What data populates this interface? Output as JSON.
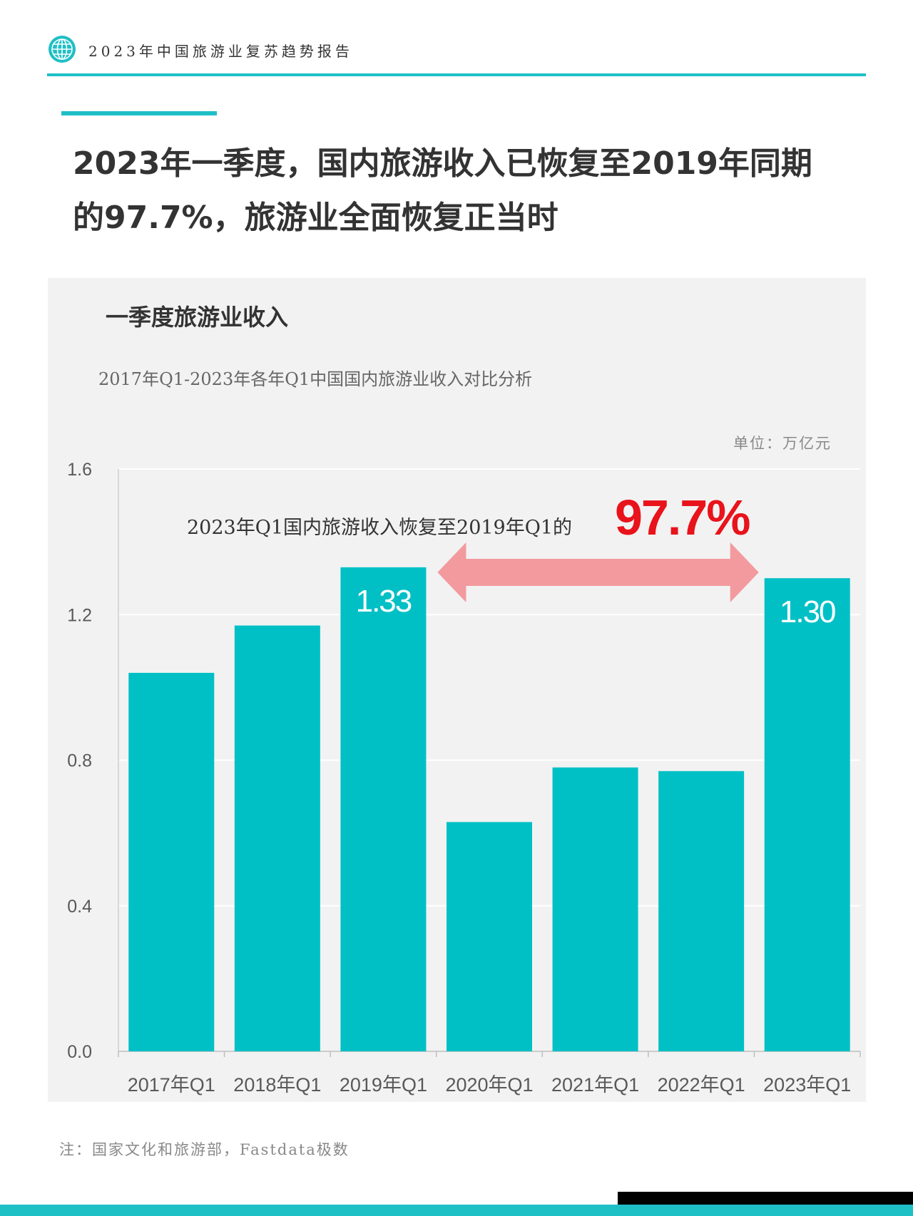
{
  "header": {
    "title": "2023年中国旅游业复苏趋势报告"
  },
  "headline": {
    "line1": "2023年一季度，国内旅游收入已恢复至2019年同期",
    "line2": "的97.7%，旅游业全面恢复正当时"
  },
  "chart_title": "一季度旅游业收入",
  "footnote": "注：国家文化和旅游部，Fastdata极数",
  "colors": {
    "accent": "#1fbfc6",
    "bar": "#00c0c6",
    "arrow": "#f29a9e",
    "highlight": "#e8131b"
  },
  "chart_data": {
    "type": "bar",
    "title": "2017年Q1-2023年各年Q1中国国内旅游业收入对比分析",
    "unit": "单位：万亿元",
    "categories": [
      "2017年Q1",
      "2018年Q1",
      "2019年Q1",
      "2020年Q1",
      "2021年Q1",
      "2022年Q1",
      "2023年Q1"
    ],
    "values": [
      1.04,
      1.17,
      1.33,
      0.63,
      0.78,
      0.77,
      1.3
    ],
    "data_labels": [
      "",
      "",
      "1.33",
      "",
      "",
      "",
      "1.30"
    ],
    "yticks": [
      "1.6",
      "1.2",
      "0.8",
      "0.4",
      "0.0"
    ],
    "ylim": [
      0,
      1.6
    ],
    "grid": true,
    "annotation": {
      "text": "2023年Q1国内旅游收入恢复至2019年Q1的",
      "value": "97.7%"
    }
  }
}
